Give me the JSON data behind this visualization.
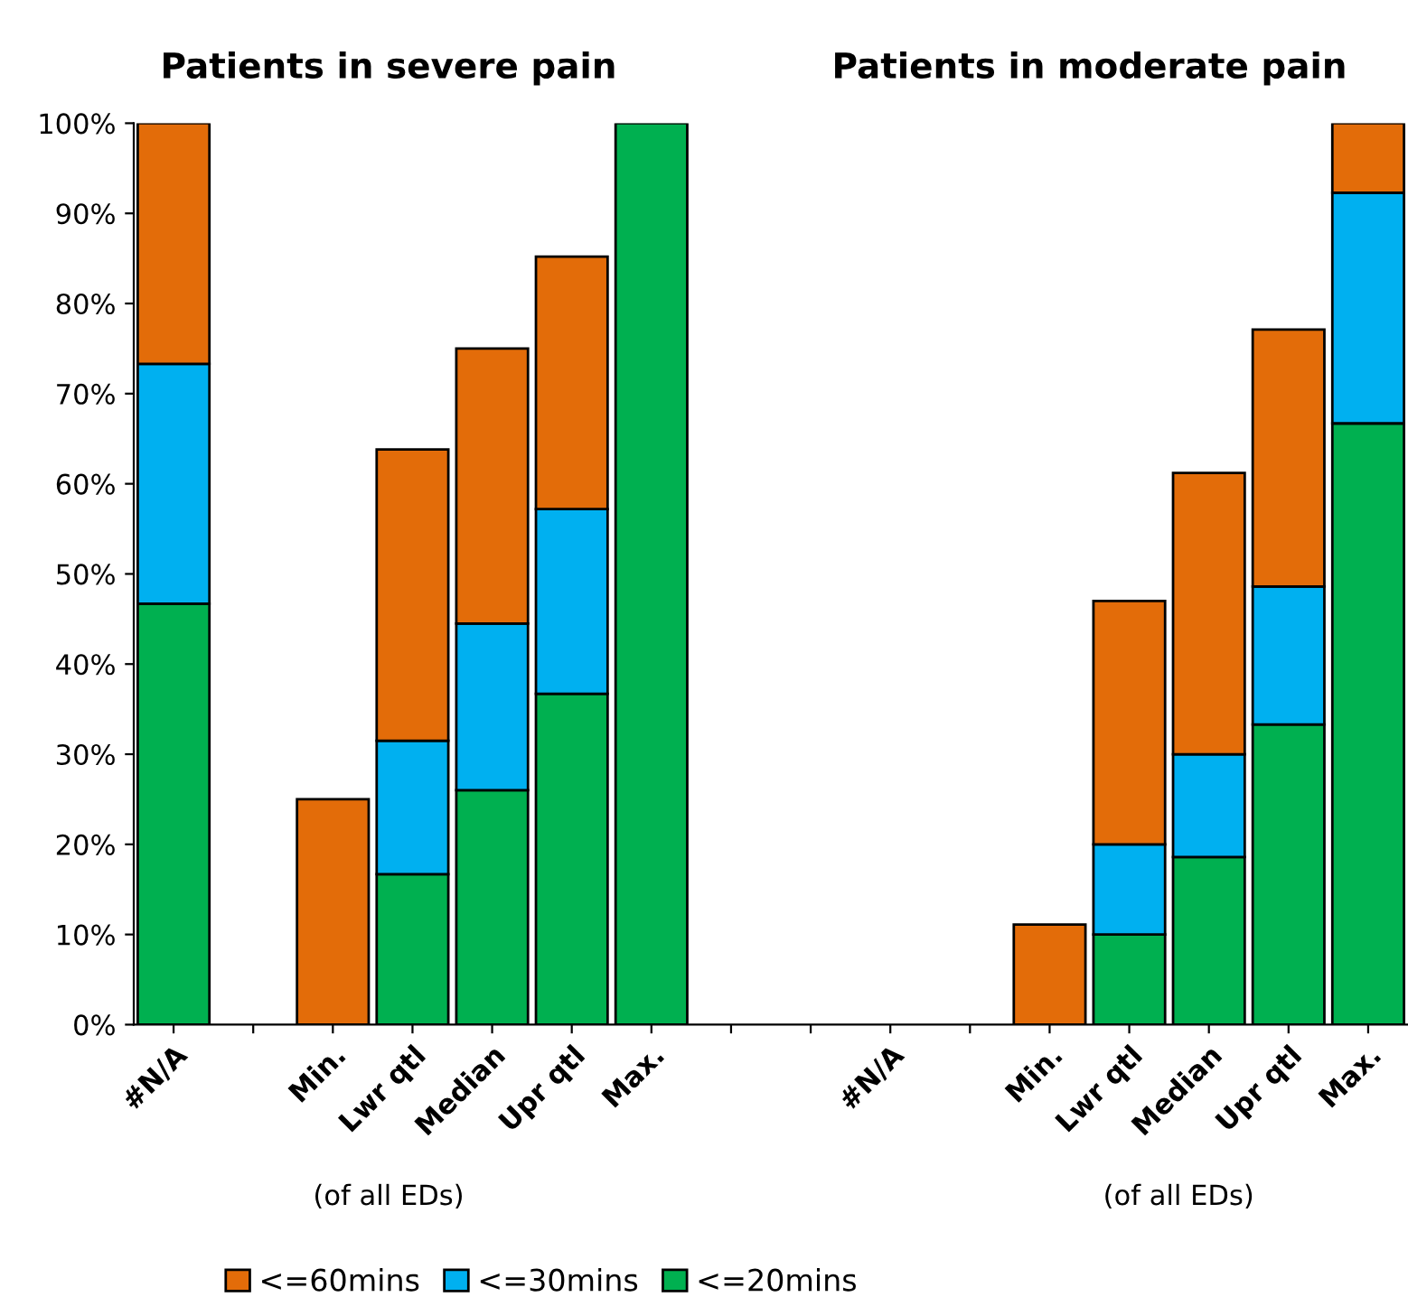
{
  "chart_data": {
    "type": "bar",
    "stacked": true,
    "categories": [
      "#N/A",
      null,
      "Min.",
      "Lwr qtl",
      "Median",
      "Upr qtl",
      "Max.",
      null,
      null,
      "#N/A",
      null,
      "Min.",
      "Lwr qtl",
      "Median",
      "Upr qtl",
      "Max."
    ],
    "series": [
      {
        "name": "<=20mins",
        "color": "#00b050",
        "values": [
          46.7,
          null,
          null,
          16.7,
          26,
          36.7,
          100,
          null,
          null,
          null,
          null,
          null,
          10,
          18.6,
          33.3,
          66.7
        ]
      },
      {
        "name": "<=30mins",
        "color": "#00b0f0",
        "values": [
          26.6,
          null,
          null,
          14.8,
          18.5,
          20.5,
          null,
          null,
          null,
          null,
          null,
          null,
          10,
          11.4,
          15.3,
          25.6
        ]
      },
      {
        "name": "<=60mins",
        "color": "#e36c09",
        "values": [
          26.7,
          null,
          25,
          32.3,
          30.5,
          28,
          null,
          null,
          null,
          null,
          null,
          11.1,
          27,
          31.2,
          28.5,
          7.7
        ]
      }
    ],
    "ylim": [
      0,
      100
    ],
    "yticks": [
      {
        "value": 0,
        "label": "0%"
      },
      {
        "value": 10,
        "label": "10%"
      },
      {
        "value": 20,
        "label": "20%"
      },
      {
        "value": 30,
        "label": "30%"
      },
      {
        "value": 40,
        "label": "40%"
      },
      {
        "value": 50,
        "label": "50%"
      },
      {
        "value": 60,
        "label": "60%"
      },
      {
        "value": 70,
        "label": "70%"
      },
      {
        "value": 80,
        "label": "80%"
      },
      {
        "value": 90,
        "label": "90%"
      },
      {
        "value": 100,
        "label": "100%"
      }
    ],
    "annotations": [
      "Patients in severe pain",
      "Patients in moderate pain",
      "(of all EDs)",
      "(of all EDs)"
    ],
    "grid": false,
    "legend": "bottom"
  }
}
